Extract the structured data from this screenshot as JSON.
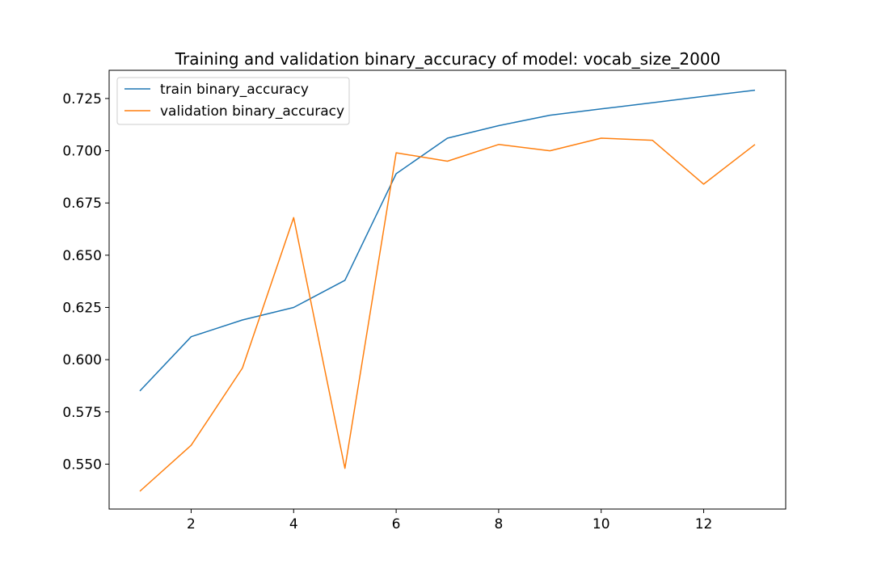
{
  "chart_data": {
    "type": "line",
    "title": "Training and validation binary_accuracy of model: vocab_size_2000",
    "xlabel": "",
    "ylabel": "",
    "x": [
      1,
      2,
      3,
      4,
      5,
      6,
      7,
      8,
      9,
      10,
      11,
      12,
      13
    ],
    "xlim": [
      0.4,
      13.6
    ],
    "ylim": [
      0.5285,
      0.7385
    ],
    "x_ticks": [
      2,
      4,
      6,
      8,
      10,
      12
    ],
    "x_tick_labels": [
      "2",
      "4",
      "6",
      "8",
      "10",
      "12"
    ],
    "y_ticks": [
      0.55,
      0.575,
      0.6,
      0.625,
      0.65,
      0.675,
      0.7,
      0.725
    ],
    "y_tick_labels": [
      "0.550",
      "0.575",
      "0.600",
      "0.625",
      "0.650",
      "0.675",
      "0.700",
      "0.725"
    ],
    "grid": false,
    "legend_position": "top-left",
    "series": [
      {
        "name": "train binary_accuracy",
        "color": "#1f77b4",
        "values": [
          0.585,
          0.611,
          0.619,
          0.625,
          0.638,
          0.689,
          0.706,
          0.712,
          0.717,
          0.72,
          0.723,
          0.726,
          0.729
        ]
      },
      {
        "name": "validation binary_accuracy",
        "color": "#ff7f0e",
        "values": [
          0.537,
          0.559,
          0.596,
          0.668,
          0.548,
          0.699,
          0.695,
          0.703,
          0.7,
          0.706,
          0.705,
          0.684,
          0.703
        ]
      }
    ]
  }
}
